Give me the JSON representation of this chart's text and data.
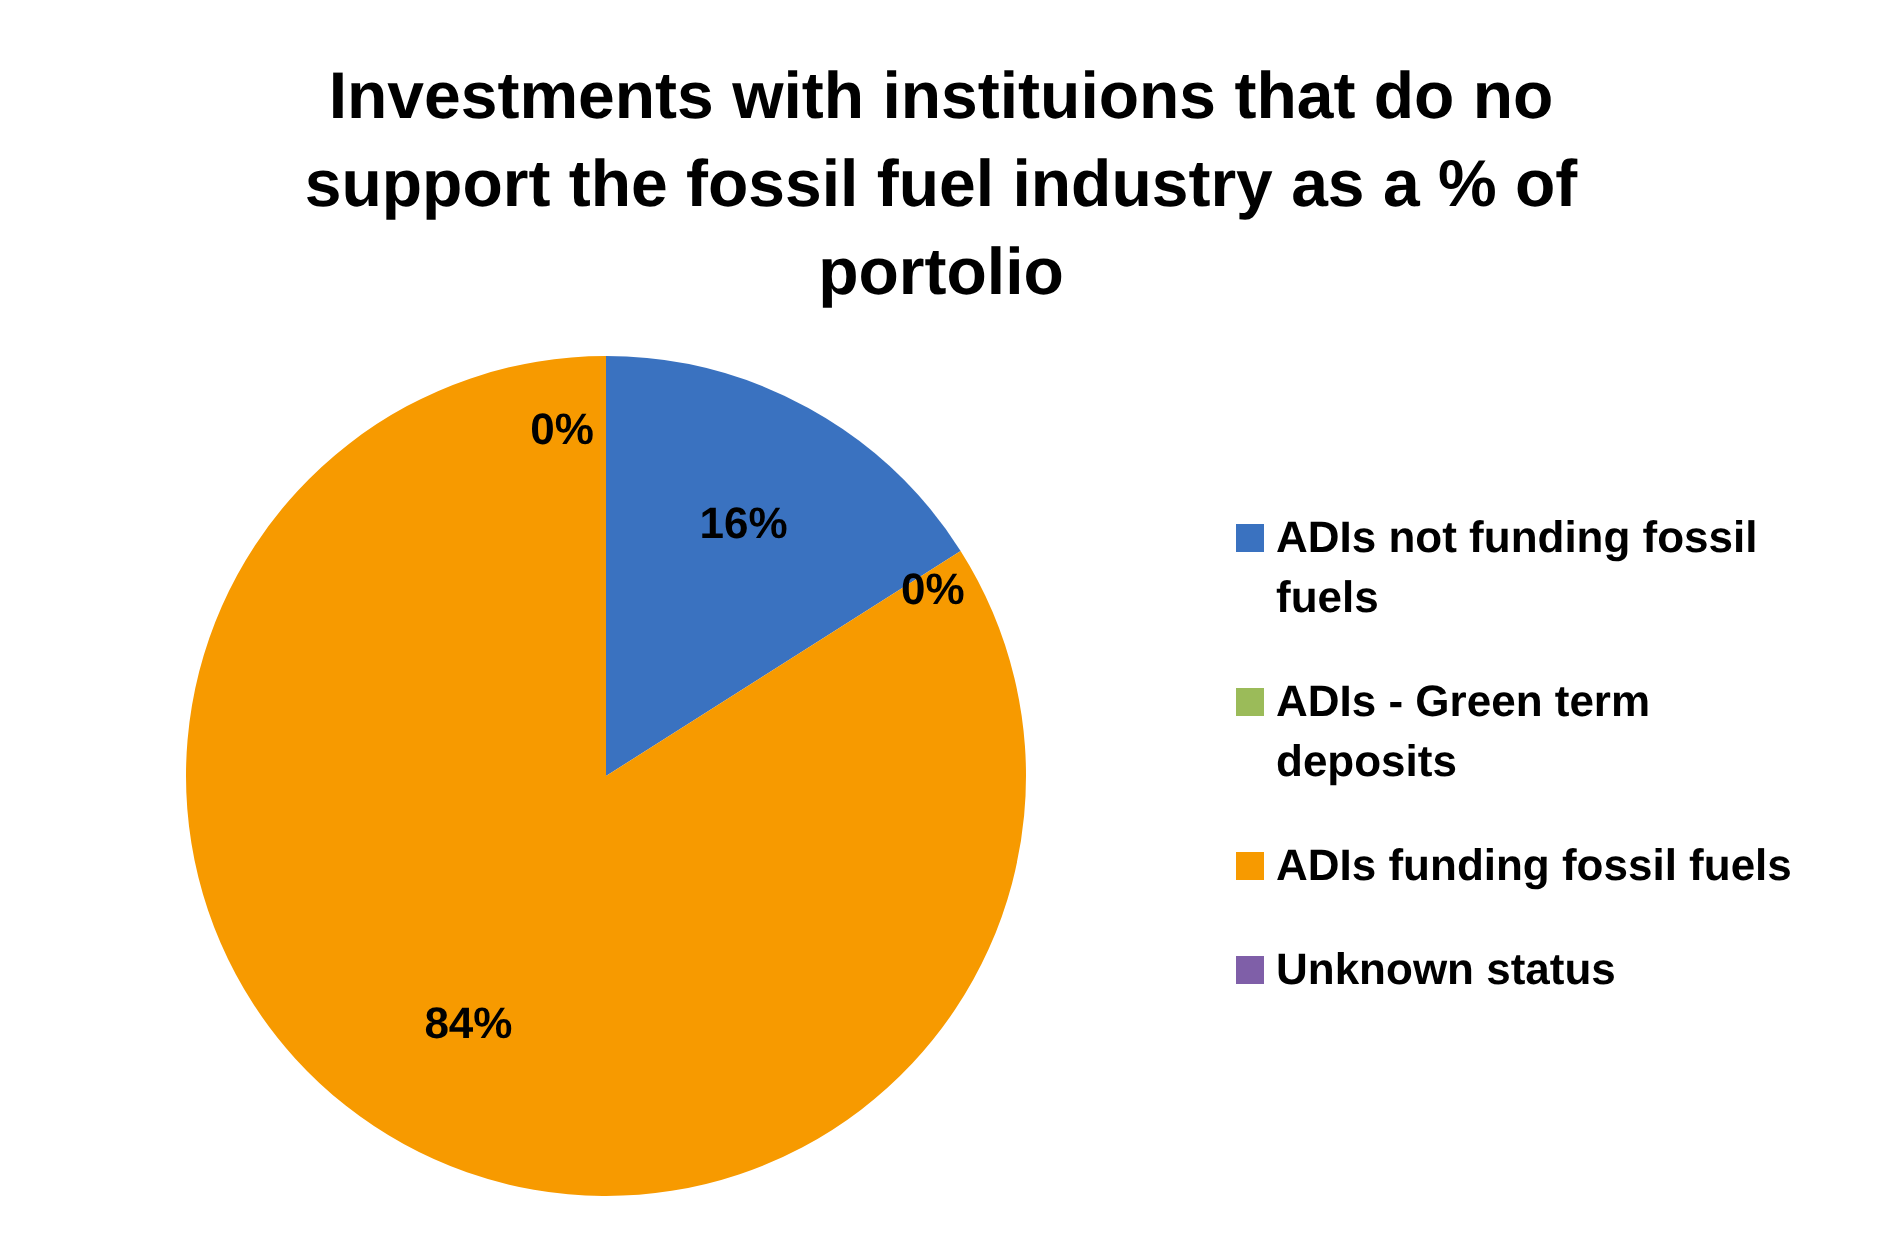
{
  "chart_data": {
    "type": "pie",
    "title": "Investments with instituions that do no support the fossil fuel industry as a % of portolio",
    "categories": [
      "ADIs not funding fossil fuels",
      "ADIs - Green term deposits",
      "ADIs funding fossil fuels",
      "Unknown status"
    ],
    "values": [
      16,
      0,
      84,
      0
    ],
    "colors": [
      "#3a72c0",
      "#9bbb59",
      "#f79a00",
      "#7f5fa8"
    ],
    "value_labels": [
      "16%",
      "0%",
      "84%",
      "0%"
    ],
    "legend": "right"
  }
}
